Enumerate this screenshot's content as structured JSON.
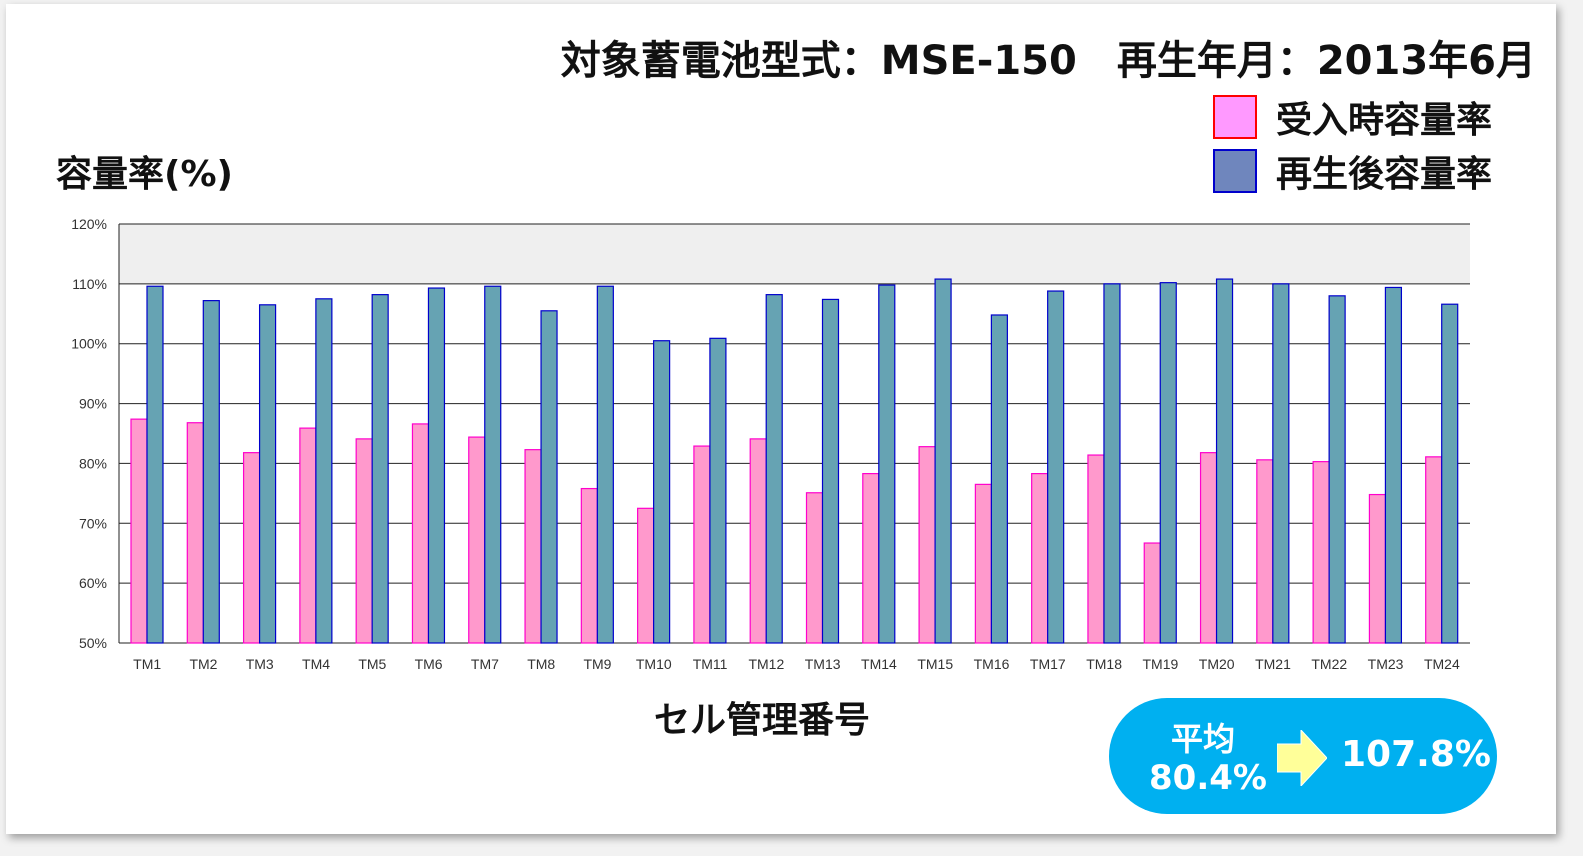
{
  "header": {
    "line": "対象蓄電池型式：MSE-150　再生年月：2013年6月"
  },
  "chart_data": {
    "type": "bar",
    "ylabel": "容量率(%)",
    "xlabel": "セル管理番号",
    "ylim": [
      50,
      120
    ],
    "yticks": [
      "50%",
      "60%",
      "70%",
      "80%",
      "90%",
      "100%",
      "110%",
      "120%"
    ],
    "grid": true,
    "legend_position": "top-right",
    "categories": [
      "TM1",
      "TM2",
      "TM3",
      "TM4",
      "TM5",
      "TM6",
      "TM7",
      "TM8",
      "TM9",
      "TM10",
      "TM11",
      "TM12",
      "TM13",
      "TM14",
      "TM15",
      "TM16",
      "TM17",
      "TM18",
      "TM19",
      "TM20",
      "TM21",
      "TM22",
      "TM23",
      "TM24"
    ],
    "series": [
      {
        "name": "受入時容量率",
        "fill": "#ff99cc",
        "stroke": "#ff00cc",
        "legend_fill": "#ff99ff",
        "legend_stroke": "#ff0000",
        "values": [
          87.4,
          86.8,
          81.8,
          85.9,
          84.1,
          86.6,
          84.4,
          82.3,
          75.8,
          72.5,
          82.9,
          84.1,
          75.1,
          78.3,
          82.8,
          76.5,
          78.3,
          81.4,
          66.7,
          81.8,
          80.6,
          80.3,
          74.8,
          81.1
        ]
      },
      {
        "name": "再生後容量率",
        "fill": "#66a3b3",
        "stroke": "#0000cc",
        "legend_fill": "#6f86bd",
        "legend_stroke": "#0000cc",
        "values": [
          109.6,
          107.2,
          106.5,
          107.5,
          108.2,
          109.3,
          109.6,
          105.5,
          109.6,
          100.5,
          100.9,
          108.2,
          107.4,
          109.8,
          110.8,
          104.8,
          108.8,
          110.0,
          110.2,
          110.8,
          110.0,
          108.0,
          109.4,
          106.6
        ]
      }
    ]
  },
  "average": {
    "label": "平均",
    "before": "80.4%",
    "after": "107.8%"
  },
  "colors": {
    "plot_band": "#efefef",
    "grid": "#222222",
    "pill": "#00b0f0",
    "arrow": "#ffff99"
  }
}
